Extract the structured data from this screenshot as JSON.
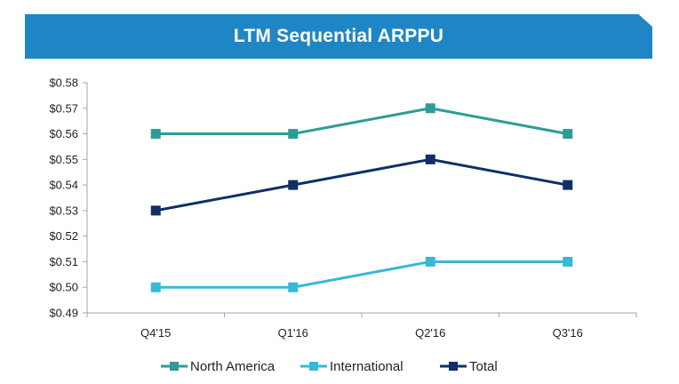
{
  "banner": {
    "title": "LTM Sequential ARPPU"
  },
  "colors": {
    "banner_bg": "#1f86c6",
    "north_america": "#2e9c96",
    "international": "#37b9d6",
    "total": "#0f2f66",
    "axis": "#a6a6a6"
  },
  "chart_data": {
    "type": "line",
    "title": "LTM Sequential ARPPU",
    "categories": [
      "Q4'15",
      "Q1'16",
      "Q2'16",
      "Q3'16"
    ],
    "series": [
      {
        "name": "North America",
        "values": [
          0.56,
          0.56,
          0.57,
          0.56
        ],
        "color": "#2e9c96"
      },
      {
        "name": "International",
        "values": [
          0.5,
          0.5,
          0.51,
          0.51
        ],
        "color": "#37b9d6"
      },
      {
        "name": "Total",
        "values": [
          0.53,
          0.54,
          0.55,
          0.54
        ],
        "color": "#0f2f66"
      }
    ],
    "ylim": [
      0.49,
      0.58
    ],
    "yticks": [
      "$0.49",
      "$0.50",
      "$0.51",
      "$0.52",
      "$0.53",
      "$0.54",
      "$0.55",
      "$0.56",
      "$0.57",
      "$0.58"
    ],
    "legend_position": "bottom",
    "grid": false
  }
}
